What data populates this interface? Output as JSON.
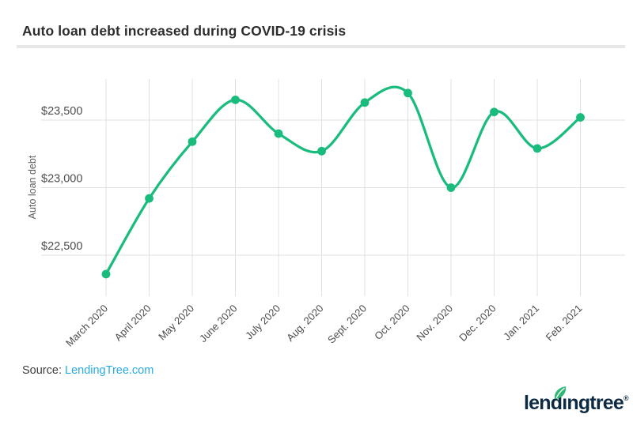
{
  "title": "Auto loan debt increased during COVID-19 crisis",
  "source": {
    "prefix": "Source:",
    "link": "LendingTree.com"
  },
  "logo": {
    "part1": "lend",
    "part2": "ıngtree",
    "registered": "®",
    "full_name": "lendingtree",
    "leaf_icon": "leaf-icon"
  },
  "colors": {
    "line": "#1abc7e",
    "grid": "#e0e0e0",
    "tick_label": "#4d4d4d",
    "axis_title": "#5e5e5e",
    "title_text": "#2d2d2d",
    "link": "#2aabe4",
    "logo_navy": "#0d2a43",
    "leaf_green": "#2eb873",
    "divider": "#e7e7e7"
  },
  "chart_data": {
    "type": "line",
    "title": "Auto loan debt increased during COVID-19 crisis",
    "xlabel": "",
    "ylabel": "Auto loan debt",
    "categories": [
      "March 2020",
      "April 2020",
      "May 2020",
      "June 2020",
      "July 2020",
      "Aug. 2020",
      "Sept. 2020",
      "Oct. 2020",
      "Nov. 2020",
      "Dec. 2020",
      "Jan. 2021",
      "Feb. 2021"
    ],
    "series": [
      {
        "name": "Auto loan debt",
        "values": [
          22360,
          22920,
          23340,
          23650,
          23400,
          23270,
          23630,
          23700,
          23000,
          23560,
          23290,
          23520
        ]
      }
    ],
    "y_ticks": [
      {
        "value": 23500,
        "label": "$23,500"
      },
      {
        "value": 23000,
        "label": "$23,000"
      },
      {
        "value": 22500,
        "label": "$22,500"
      }
    ],
    "ylim": [
      22290,
      23760
    ],
    "grid": true,
    "legend_position": "none",
    "curve": "smooth",
    "marker": "circle"
  }
}
